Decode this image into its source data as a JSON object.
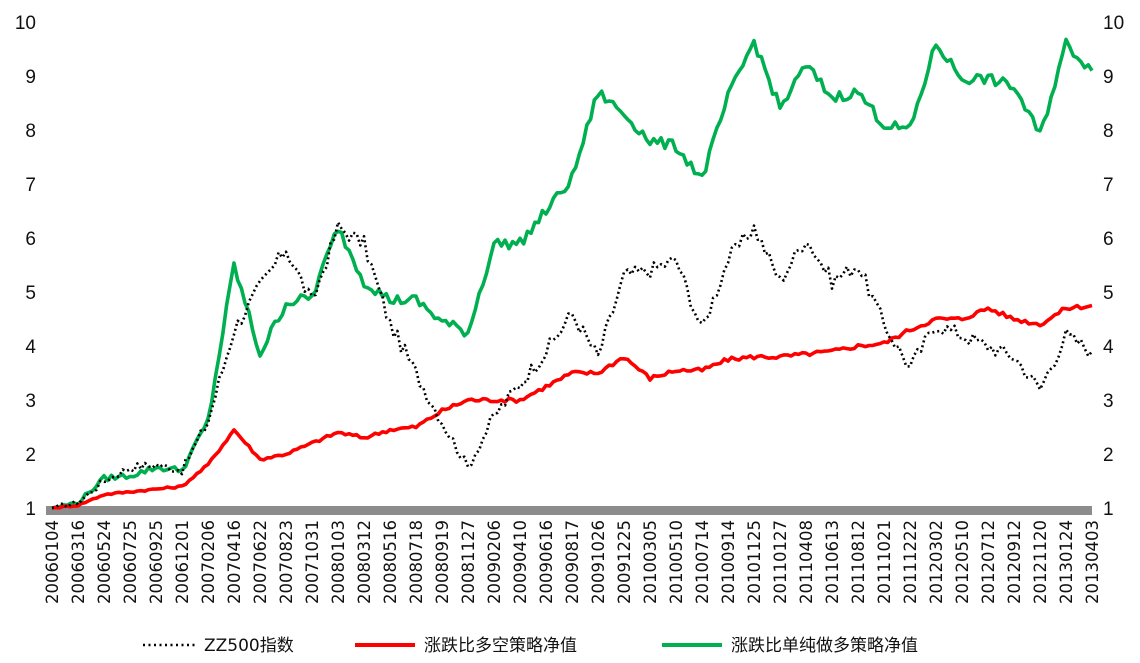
{
  "chart_data": {
    "type": "line",
    "ylim": [
      1,
      10
    ],
    "yticks": [
      1,
      2,
      3,
      4,
      5,
      6,
      7,
      8,
      9,
      10
    ],
    "y2ticks": [
      1,
      2,
      3,
      4,
      5,
      6,
      7,
      8,
      9,
      10
    ],
    "grid": false,
    "legend_position": "bottom",
    "x_labels": [
      "20060104",
      "20060316",
      "20060524",
      "20060725",
      "20060925",
      "20061201",
      "20070206",
      "20070416",
      "20070622",
      "20070823",
      "20071031",
      "20080103",
      "20080312",
      "20080516",
      "20080718",
      "20080919",
      "20081127",
      "20090206",
      "20090410",
      "20090616",
      "20090817",
      "20091026",
      "20091225",
      "20100305",
      "20100510",
      "20100714",
      "20100914",
      "20101125",
      "20110127",
      "20110408",
      "20110613",
      "20110812",
      "20111021",
      "20111222",
      "20120302",
      "20120510",
      "20120712",
      "20120912",
      "20121120",
      "20130124",
      "20130403"
    ],
    "series": [
      {
        "name": "ZZ500指数",
        "color": "#000000",
        "style": "dotted",
        "values": [
          1.0,
          1.1,
          1.5,
          1.75,
          1.8,
          1.7,
          2.6,
          4.3,
          5.1,
          5.8,
          4.8,
          6.2,
          5.9,
          4.4,
          3.5,
          2.6,
          1.75,
          2.7,
          3.3,
          3.9,
          4.6,
          3.8,
          5.3,
          5.4,
          5.6,
          4.3,
          5.6,
          6.2,
          5.2,
          6.0,
          5.2,
          5.5,
          4.4,
          3.6,
          4.4,
          4.2,
          4.0,
          3.8,
          3.2,
          4.2,
          3.9
        ]
      },
      {
        "name": "涨跌比多空策略净值",
        "color": "#ff0000",
        "style": "solid",
        "values": [
          1.0,
          1.05,
          1.25,
          1.3,
          1.35,
          1.4,
          1.8,
          2.45,
          1.9,
          2.0,
          2.2,
          2.4,
          2.3,
          2.45,
          2.5,
          2.8,
          3.0,
          3.0,
          3.0,
          3.25,
          3.5,
          3.5,
          3.8,
          3.4,
          3.55,
          3.55,
          3.75,
          3.8,
          3.8,
          3.85,
          3.9,
          4.0,
          4.05,
          4.3,
          4.5,
          4.5,
          4.7,
          4.5,
          4.4,
          4.7,
          4.75
        ]
      },
      {
        "name": "涨跌比单纯做多策略净值",
        "color": "#00b050",
        "style": "solid",
        "values": [
          1.0,
          1.1,
          1.55,
          1.6,
          1.75,
          1.7,
          2.6,
          5.5,
          3.85,
          4.8,
          4.9,
          6.2,
          5.2,
          4.85,
          4.85,
          4.45,
          4.25,
          5.9,
          5.9,
          6.5,
          7.1,
          8.7,
          8.3,
          7.8,
          7.7,
          7.1,
          8.6,
          9.65,
          8.4,
          9.2,
          8.6,
          8.7,
          8.1,
          8.0,
          9.6,
          8.95,
          8.95,
          8.8,
          7.9,
          9.6,
          9.1
        ]
      }
    ]
  }
}
